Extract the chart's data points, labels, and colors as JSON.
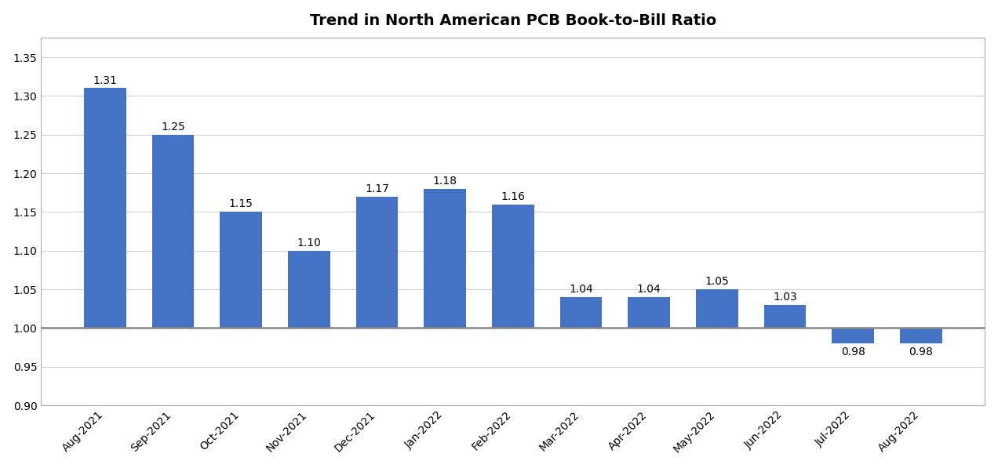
{
  "title": "Trend in North American PCB Book-to-Bill Ratio",
  "categories": [
    "Aug-2021",
    "Sep-2021",
    "Oct-2021",
    "Nov-2021",
    "Dec-2021",
    "Jan-2022",
    "Feb-2022",
    "Mar-2022",
    "Apr-2022",
    "May-2022",
    "Jun-2022",
    "Jul-2022",
    "Aug-2022"
  ],
  "values": [
    1.31,
    1.25,
    1.15,
    1.1,
    1.17,
    1.18,
    1.16,
    1.04,
    1.04,
    1.05,
    1.03,
    0.98,
    0.98
  ],
  "bar_color": "#4472C4",
  "ylim": [
    0.9,
    1.375
  ],
  "yticks": [
    0.9,
    0.95,
    1.0,
    1.05,
    1.1,
    1.15,
    1.2,
    1.25,
    1.3,
    1.35
  ],
  "background_color": "#ffffff",
  "grid_color": "#d0d0d0",
  "title_fontsize": 14,
  "tick_fontsize": 10,
  "bar_label_fontsize": 10,
  "baseline_color": "#888888",
  "baseline_value": 1.0,
  "bar_width": 0.62
}
